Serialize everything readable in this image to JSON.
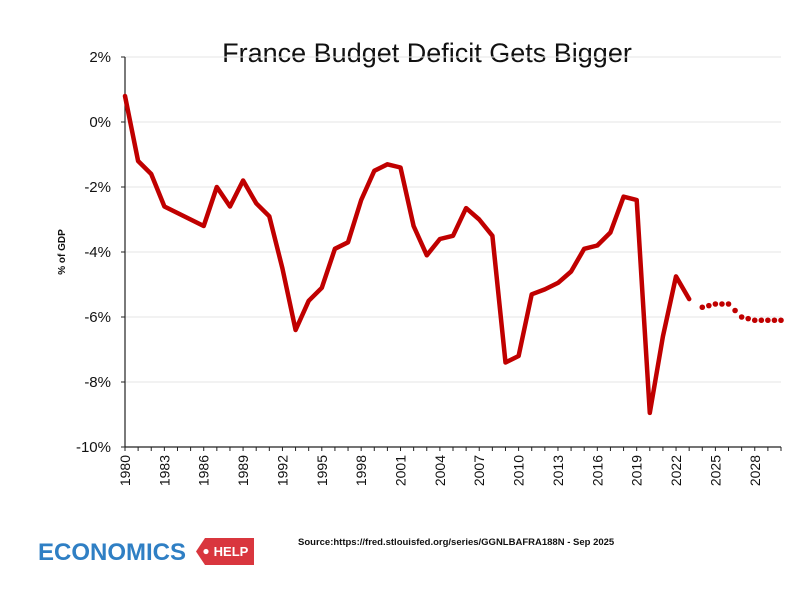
{
  "chart_data": {
    "type": "line",
    "title": "France Budget Deficit Gets Bigger",
    "ylabel": "% of GDP",
    "xlabel": "",
    "ylim": [
      -10,
      2
    ],
    "xlim": [
      1980,
      2030
    ],
    "y_ticks": [
      "2%",
      "0%",
      "-2%",
      "-4%",
      "-6%",
      "-8%",
      "-10%"
    ],
    "x_ticks": [
      "1980",
      "1983",
      "1986",
      "1989",
      "1992",
      "1995",
      "1998",
      "2001",
      "2004",
      "2007",
      "2010",
      "2013",
      "2016",
      "2019",
      "2022",
      "2025",
      "2028"
    ],
    "grid": true,
    "line_color": "#c00000",
    "series": [
      {
        "style": "solid",
        "x": [
          1980,
          1981,
          1982,
          1983,
          1984,
          1985,
          1986,
          1987,
          1988,
          1989,
          1990,
          1991,
          1992,
          1993,
          1994,
          1995,
          1996,
          1997,
          1998,
          1999,
          2000,
          2001,
          2002,
          2003,
          2004,
          2005,
          2006,
          2007,
          2008,
          2009,
          2010,
          2011,
          2012,
          2013,
          2014,
          2015,
          2016,
          2017,
          2018,
          2019,
          2020,
          2021,
          2022,
          2023
        ],
        "values": [
          0.8,
          -1.2,
          -1.6,
          -2.6,
          -2.8,
          -3.0,
          -3.2,
          -2.0,
          -2.6,
          -1.8,
          -2.5,
          -2.9,
          -4.5,
          -6.4,
          -5.5,
          -5.1,
          -3.9,
          -3.7,
          -2.4,
          -1.5,
          -1.3,
          -1.4,
          -3.2,
          -4.1,
          -3.6,
          -3.5,
          -2.65,
          -3.0,
          -3.5,
          -7.4,
          -7.2,
          -5.3,
          -5.15,
          -4.95,
          -4.6,
          -3.9,
          -3.8,
          -3.4,
          -2.3,
          -2.4,
          -8.95,
          -6.6,
          -4.75,
          -5.45
        ]
      },
      {
        "style": "dotted",
        "x": [
          2024,
          2025,
          2026,
          2027,
          2028,
          2029,
          2030
        ],
        "values": [
          -5.7,
          -5.6,
          -5.6,
          -6.0,
          -6.1,
          -6.1,
          -6.1
        ]
      }
    ]
  },
  "source_text": "Source:https://fred.stlouisfed.org/series/GGNLBAFRA188N - Sep 2025",
  "logo": {
    "word": "ECONOMICS",
    "help": "HELP",
    "word_color": "#2f7fc4",
    "help_color": "#d9363e"
  }
}
